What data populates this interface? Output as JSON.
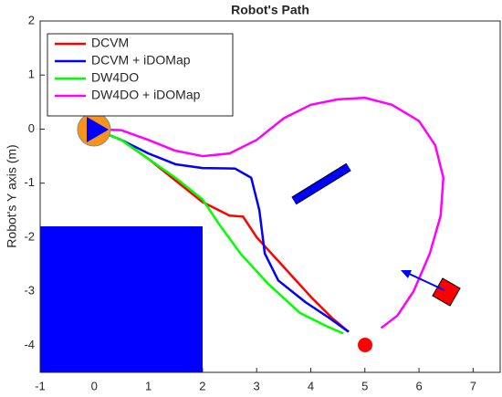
{
  "chart_data": {
    "type": "line",
    "title": "Robot's Path",
    "y_label": "Robot's Y axis (m)",
    "xlim": [
      -1,
      7.5
    ],
    "ylim": [
      -4.5,
      2
    ],
    "xticks": [
      -1,
      0,
      1,
      2,
      3,
      4,
      5,
      6,
      7
    ],
    "yticks": [
      -4,
      -3,
      -2,
      -1,
      0,
      1,
      2
    ],
    "grid": false,
    "legend": "upper left",
    "series": [
      {
        "name": "DCVM",
        "color": "#ff0000",
        "x": [
          0,
          0.5,
          1.0,
          1.5,
          2.0,
          2.5,
          2.75,
          3.0,
          3.5,
          4.0,
          4.4,
          4.7
        ],
        "values": [
          0,
          -0.2,
          -0.55,
          -0.95,
          -1.35,
          -1.6,
          -1.62,
          -2.0,
          -2.55,
          -3.1,
          -3.5,
          -3.75
        ]
      },
      {
        "name": "DCVM + iDOMap",
        "color": "#0000ff",
        "x": [
          0,
          0.5,
          1.0,
          1.5,
          2.0,
          2.6,
          2.9,
          3.05,
          3.15,
          3.4,
          3.9,
          4.35,
          4.7
        ],
        "values": [
          0,
          -0.2,
          -0.45,
          -0.65,
          -0.72,
          -0.73,
          -0.9,
          -1.5,
          -2.3,
          -2.8,
          -3.2,
          -3.5,
          -3.75
        ]
      },
      {
        "name": "DW4DO",
        "color": "#00ff00",
        "x": [
          0,
          0.5,
          1.0,
          1.5,
          2.0,
          2.3,
          2.7,
          3.2,
          3.8,
          4.3,
          4.6
        ],
        "values": [
          0,
          -0.2,
          -0.55,
          -0.9,
          -1.3,
          -1.75,
          -2.3,
          -2.85,
          -3.4,
          -3.65,
          -3.78
        ]
      },
      {
        "name": "DW4DO + iDOMap",
        "color": "#ff00ff",
        "x": [
          0,
          0.5,
          1.0,
          1.5,
          2.0,
          2.5,
          3.0,
          3.5,
          4.0,
          4.5,
          5.0,
          5.5,
          6.0,
          6.3,
          6.45,
          6.4,
          6.2,
          5.9,
          5.6,
          5.3
        ],
        "values": [
          0,
          -0.02,
          -0.2,
          -0.4,
          -0.5,
          -0.45,
          -0.2,
          0.2,
          0.45,
          0.55,
          0.58,
          0.45,
          0.15,
          -0.3,
          -0.9,
          -1.6,
          -2.3,
          -3.0,
          -3.45,
          -3.68
        ]
      }
    ]
  }
}
